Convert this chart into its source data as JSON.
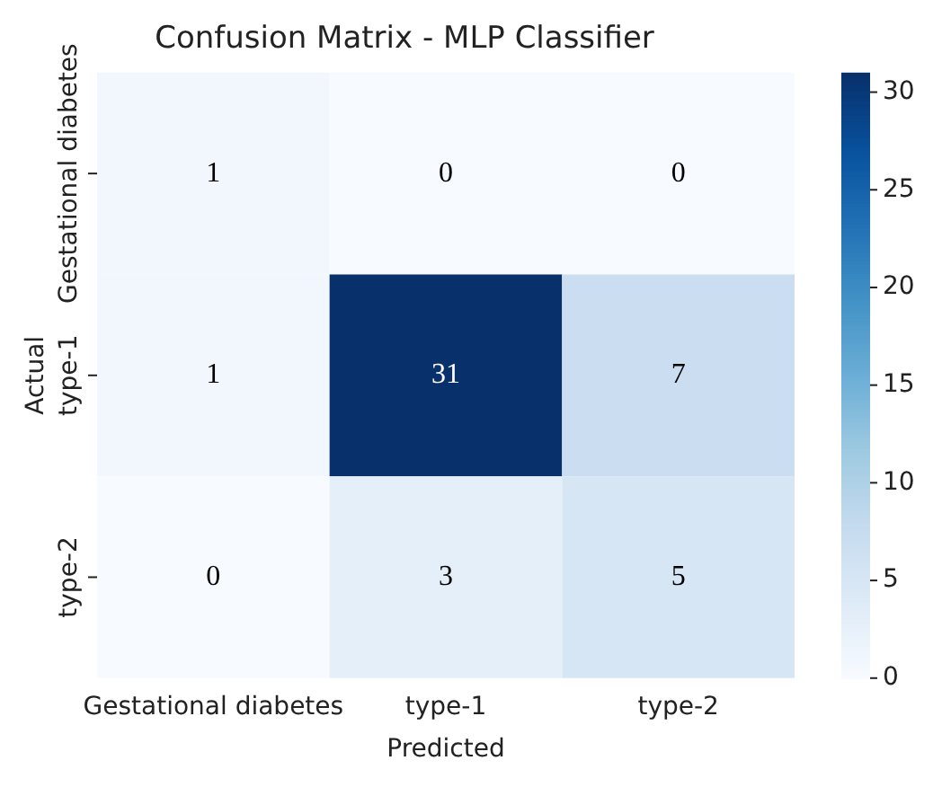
{
  "chart_data": {
    "type": "heatmap",
    "title": "Confusion Matrix - MLP Classifier",
    "xlabel": "Predicted",
    "ylabel": "Actual",
    "categories": [
      "Gestational diabetes",
      "type-1",
      "type-2"
    ],
    "y_categories": [
      "Gestational diabetes",
      "type-1",
      "type-2"
    ],
    "cells": [
      [
        1,
        0,
        0
      ],
      [
        1,
        31,
        7
      ],
      [
        0,
        3,
        5
      ]
    ],
    "clim": [
      0,
      31
    ],
    "cticks": [
      0,
      5,
      10,
      15,
      20,
      25,
      30
    ],
    "data_labels": true
  }
}
